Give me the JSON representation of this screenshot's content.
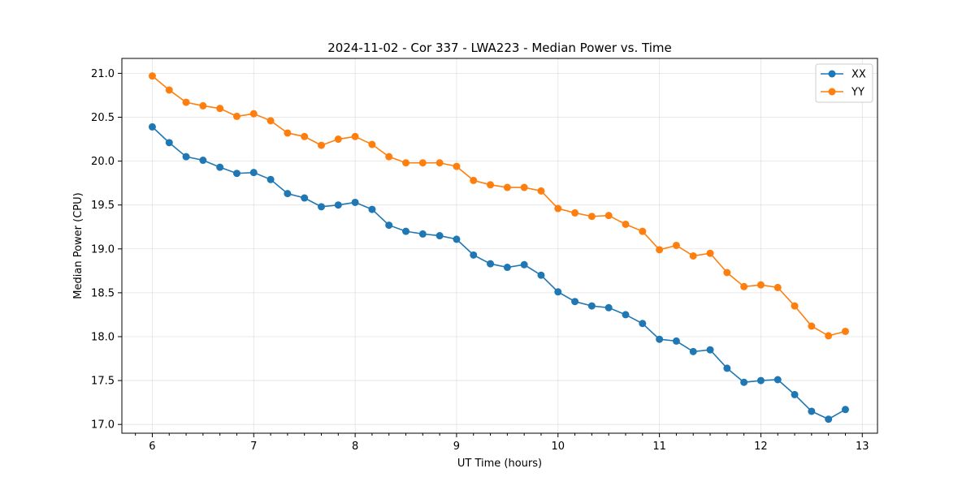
{
  "chart_data": {
    "type": "line",
    "title": "2024-11-02 - Cor 337 - LWA223 - Median Power vs. Time",
    "xlabel": "UT Time (hours)",
    "ylabel": "Median Power (CPU)",
    "xlim": [
      5.7,
      13.15
    ],
    "ylim": [
      16.9,
      21.17
    ],
    "xticks": [
      6,
      7,
      8,
      9,
      10,
      11,
      12,
      13
    ],
    "xtick_labels": [
      "6",
      "7",
      "8",
      "9",
      "10",
      "11",
      "12",
      "13"
    ],
    "yticks": [
      17.0,
      17.5,
      18.0,
      18.5,
      19.0,
      19.5,
      20.0,
      20.5,
      21.0
    ],
    "ytick_labels": [
      "17.0",
      "17.5",
      "18.0",
      "18.5",
      "19.0",
      "19.5",
      "20.0",
      "20.5",
      "21.0"
    ],
    "grid": true,
    "legend_position": "top-right",
    "x": [
      6.0,
      6.1667,
      6.3333,
      6.5,
      6.6667,
      6.8333,
      7.0,
      7.1667,
      7.3333,
      7.5,
      7.6667,
      7.8333,
      8.0,
      8.1667,
      8.3333,
      8.5,
      8.6667,
      8.8333,
      9.0,
      9.1667,
      9.3333,
      9.5,
      9.6667,
      9.8333,
      10.0,
      10.1667,
      10.3333,
      10.5,
      10.6667,
      10.8333,
      11.0,
      11.1667,
      11.3333,
      11.5,
      11.6667,
      11.8333,
      12.0,
      12.1667,
      12.3333,
      12.5,
      12.6667,
      12.8333
    ],
    "series": [
      {
        "name": "XX",
        "color": "#1f77b4",
        "values": [
          20.39,
          20.21,
          20.05,
          20.01,
          19.93,
          19.86,
          19.87,
          19.79,
          19.63,
          19.58,
          19.48,
          19.5,
          19.53,
          19.45,
          19.27,
          19.2,
          19.17,
          19.15,
          19.11,
          18.93,
          18.83,
          18.79,
          18.82,
          18.7,
          18.51,
          18.4,
          18.35,
          18.33,
          18.25,
          18.15,
          17.97,
          17.95,
          17.83,
          17.85,
          17.64,
          17.48,
          17.5,
          17.51,
          17.34,
          17.15,
          17.06,
          17.17
        ]
      },
      {
        "name": "YY",
        "color": "#ff7f0e",
        "values": [
          20.97,
          20.81,
          20.67,
          20.63,
          20.6,
          20.51,
          20.54,
          20.46,
          20.32,
          20.28,
          20.18,
          20.25,
          20.28,
          20.19,
          20.05,
          19.98,
          19.98,
          19.98,
          19.94,
          19.78,
          19.73,
          19.7,
          19.7,
          19.66,
          19.46,
          19.41,
          19.37,
          19.38,
          19.28,
          19.2,
          18.99,
          19.04,
          18.92,
          18.95,
          18.73,
          18.57,
          18.59,
          18.56,
          18.35,
          18.12,
          18.01,
          18.06
        ]
      }
    ]
  }
}
